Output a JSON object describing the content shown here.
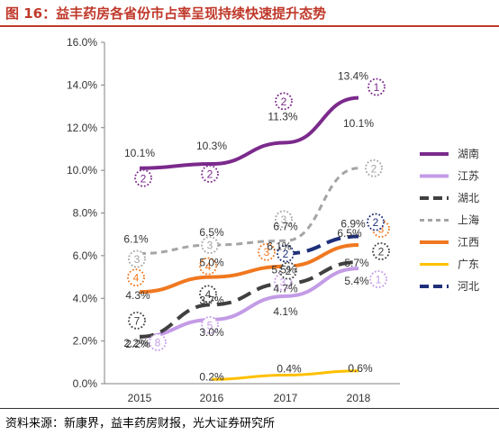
{
  "figure": {
    "title": "图 16：益丰药房各省份市占率呈现持续快速提升态势",
    "source": "资料来源：新康界，益丰药房财报，光大证券研究所"
  },
  "chart_data": {
    "type": "line",
    "categories": [
      "2015",
      "2016",
      "2017",
      "2018"
    ],
    "ylim": [
      0,
      16
    ],
    "yticks": [
      "0.0%",
      "2.0%",
      "4.0%",
      "6.0%",
      "8.0%",
      "10.0%",
      "12.0%",
      "14.0%",
      "16.0%"
    ],
    "legend_position": "right",
    "grid": false,
    "series": [
      {
        "name": "湖南",
        "color": "#7b2a8c",
        "dash": "solid",
        "width": 4,
        "values": [
          10.1,
          10.3,
          11.3,
          13.4
        ],
        "labels": [
          "10.1%",
          "10.3%",
          "11.3%",
          "13.4%"
        ],
        "ranks": [
          "2",
          "2",
          "2",
          "1"
        ]
      },
      {
        "name": "江苏",
        "color": "#c39be6",
        "dash": "solid",
        "width": 4,
        "values": [
          2.2,
          3.0,
          4.1,
          5.4
        ],
        "labels": [
          "2.2%",
          "3.0%",
          "4.1%",
          "5.4%"
        ],
        "ranks": [
          "8",
          "5",
          "3",
          "1"
        ]
      },
      {
        "name": "湖北",
        "color": "#404040",
        "dash": "long",
        "width": 4,
        "values": [
          2.2,
          3.7,
          4.7,
          5.7
        ],
        "labels": [
          "2.2%",
          "3.7%",
          "4.7%",
          "5.7%"
        ],
        "ranks": [
          "7",
          "4",
          "2",
          "2"
        ]
      },
      {
        "name": "上海",
        "color": "#a5a5a5",
        "dash": "short",
        "width": 3,
        "values": [
          6.1,
          6.5,
          6.7,
          10.1
        ],
        "labels": [
          "6.1%",
          "6.5%",
          "6.7%",
          "10.1%"
        ],
        "ranks": [
          "3",
          "3",
          "3",
          "2"
        ]
      },
      {
        "name": "江西",
        "color": "#f07820",
        "dash": "solid",
        "width": 4,
        "values": [
          4.3,
          5.0,
          5.5,
          6.5
        ],
        "labels": [
          "4.3%",
          "5.0%",
          "5.5%",
          "6.5%"
        ],
        "ranks": [
          "4",
          "4",
          "3",
          "3"
        ]
      },
      {
        "name": "广东",
        "color": "#ffc000",
        "dash": "solid",
        "width": 3,
        "values": [
          null,
          0.2,
          0.4,
          0.6
        ],
        "labels": [
          "",
          "0.2%",
          "0.4%",
          "0.6%"
        ],
        "ranks": [
          "",
          "",
          "",
          ""
        ]
      },
      {
        "name": "河北",
        "color": "#1f2f7a",
        "dash": "long",
        "width": 4,
        "values": [
          null,
          null,
          6.1,
          6.9
        ],
        "labels": [
          "",
          "",
          "6.1%",
          "6.9%"
        ],
        "ranks": [
          "",
          "",
          "2",
          "2"
        ]
      }
    ]
  }
}
